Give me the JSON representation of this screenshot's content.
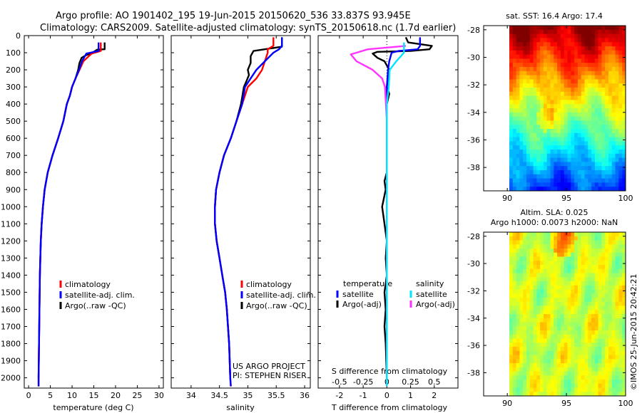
{
  "header": {
    "line1": "Argo profile: AO 1901402_195 19-Jun-2015 20150620_536 33.837S 93.945E",
    "line2": "Climatology: CARS2009. Satellite-adjusted climatology: synTS_20150618.nc (1.7d earlier)"
  },
  "colors": {
    "climatology": "#ff0000",
    "satellite": "#0000ff",
    "argo": "#000000",
    "sal_satellite": "#00e5ff",
    "sal_argo": "#ff33ff"
  },
  "chart_data": [
    {
      "type": "line",
      "panel": "temperature",
      "xlabel": "temperature (deg C)",
      "xlim": [
        -1,
        31
      ],
      "xticks": [
        0,
        5,
        10,
        15,
        20,
        25,
        30
      ],
      "ylim": [
        0,
        2060
      ],
      "yticks": [
        0,
        100,
        200,
        300,
        400,
        500,
        600,
        700,
        800,
        900,
        1000,
        1100,
        1200,
        1300,
        1400,
        1500,
        1600,
        1700,
        1800,
        1900,
        2000
      ],
      "legend": [
        "climatology",
        "satellite-adj. clim.",
        "Argo(..raw -QC)"
      ],
      "legend_position": "bottom-right",
      "series": [
        {
          "name": "climatology",
          "color": "#ff0000",
          "points": [
            [
              16.6,
              40
            ],
            [
              16.6,
              90
            ],
            [
              14.5,
              105
            ],
            [
              12.6,
              150
            ],
            [
              11.7,
              200
            ],
            [
              10.8,
              250
            ],
            [
              10.0,
              300
            ],
            [
              9.5,
              350
            ],
            [
              8.8,
              400
            ],
            [
              8.0,
              500
            ],
            [
              6.8,
              600
            ],
            [
              5.5,
              700
            ],
            [
              4.4,
              800
            ],
            [
              3.7,
              900
            ],
            [
              3.3,
              1000
            ],
            [
              3.0,
              1100
            ],
            [
              2.8,
              1200
            ],
            [
              2.6,
              1400
            ],
            [
              2.5,
              1600
            ],
            [
              2.4,
              1800
            ],
            [
              2.3,
              2000
            ],
            [
              2.3,
              2050
            ]
          ]
        },
        {
          "name": "satellite-adj. clim.",
          "color": "#0000ff",
          "points": [
            [
              16.1,
              40
            ],
            [
              16.1,
              90
            ],
            [
              13.3,
              105
            ],
            [
              12.3,
              150
            ],
            [
              11.6,
              200
            ],
            [
              10.8,
              250
            ],
            [
              10.0,
              300
            ],
            [
              9.5,
              350
            ],
            [
              8.8,
              400
            ],
            [
              8.0,
              500
            ],
            [
              6.8,
              600
            ],
            [
              5.5,
              700
            ],
            [
              4.4,
              800
            ],
            [
              3.7,
              900
            ],
            [
              3.3,
              1000
            ],
            [
              3.0,
              1100
            ],
            [
              2.8,
              1200
            ],
            [
              2.6,
              1400
            ],
            [
              2.5,
              1600
            ],
            [
              2.4,
              1800
            ],
            [
              2.3,
              2000
            ],
            [
              2.3,
              2050
            ]
          ]
        },
        {
          "name": "Argo(..raw -QC)",
          "color": "#000000",
          "points": [
            [
              17.5,
              40
            ],
            [
              17.5,
              80
            ],
            [
              15.8,
              82
            ],
            [
              15.0,
              95
            ],
            [
              14.2,
              105
            ],
            [
              13.2,
              115
            ],
            [
              12.2,
              130
            ],
            [
              11.7,
              160
            ],
            [
              11.4,
              200
            ],
            [
              10.8,
              250
            ],
            [
              10.0,
              300
            ],
            [
              9.5,
              350
            ],
            [
              8.8,
              400
            ],
            [
              8.0,
              500
            ],
            [
              6.8,
              600
            ],
            [
              5.5,
              700
            ],
            [
              4.4,
              800
            ],
            [
              3.7,
              900
            ],
            [
              3.3,
              1000
            ],
            [
              3.0,
              1100
            ],
            [
              2.8,
              1200
            ],
            [
              2.6,
              1400
            ],
            [
              2.5,
              1600
            ],
            [
              2.4,
              1800
            ],
            [
              2.3,
              2000
            ]
          ]
        }
      ]
    },
    {
      "type": "line",
      "panel": "salinity",
      "xlabel": "salinity",
      "xlim": [
        33.65,
        36.1
      ],
      "xticks": [
        34,
        34.5,
        35,
        35.5,
        36
      ],
      "ylim": [
        0,
        2060
      ],
      "legend": [
        "climatology",
        "satellite-adj. clim.",
        "Argo(..raw -QC)"
      ],
      "legend_position": "bottom-right",
      "annotations": [
        "US ARGO PROJECT",
        "PI: STEPHEN RISER"
      ],
      "series": [
        {
          "name": "climatology",
          "color": "#ff0000",
          "points": [
            [
              35.45,
              10
            ],
            [
              35.45,
              60
            ],
            [
              35.35,
              80
            ],
            [
              35.35,
              100
            ],
            [
              35.3,
              150
            ],
            [
              35.25,
              200
            ],
            [
              35.15,
              250
            ],
            [
              35.0,
              300
            ],
            [
              34.9,
              400
            ],
            [
              34.8,
              500
            ],
            [
              34.7,
              600
            ],
            [
              34.58,
              700
            ],
            [
              34.5,
              800
            ],
            [
              34.44,
              900
            ],
            [
              34.42,
              1000
            ],
            [
              34.42,
              1100
            ],
            [
              34.45,
              1200
            ],
            [
              34.5,
              1300
            ],
            [
              34.55,
              1400
            ],
            [
              34.6,
              1500
            ],
            [
              34.63,
              1600
            ],
            [
              34.65,
              1700
            ],
            [
              34.67,
              1800
            ],
            [
              34.69,
              2000
            ],
            [
              34.7,
              2050
            ]
          ]
        },
        {
          "name": "satellite-adj. clim.",
          "color": "#0000ff",
          "points": [
            [
              35.6,
              10
            ],
            [
              35.6,
              60
            ],
            [
              35.55,
              80
            ],
            [
              35.45,
              100
            ],
            [
              35.3,
              150
            ],
            [
              35.15,
              200
            ],
            [
              35.05,
              250
            ],
            [
              34.95,
              300
            ],
            [
              34.9,
              400
            ],
            [
              34.8,
              500
            ],
            [
              34.7,
              600
            ],
            [
              34.58,
              700
            ],
            [
              34.5,
              800
            ],
            [
              34.44,
              900
            ],
            [
              34.42,
              1000
            ],
            [
              34.42,
              1100
            ],
            [
              34.45,
              1200
            ],
            [
              34.5,
              1300
            ],
            [
              34.55,
              1400
            ],
            [
              34.6,
              1500
            ],
            [
              34.63,
              1600
            ],
            [
              34.65,
              1700
            ],
            [
              34.67,
              1800
            ],
            [
              34.69,
              2000
            ],
            [
              34.7,
              2050
            ]
          ]
        },
        {
          "name": "Argo(..raw -QC)",
          "color": "#000000",
          "points": [
            [
              35.6,
              10
            ],
            [
              35.6,
              65
            ],
            [
              35.1,
              90
            ],
            [
              35.05,
              120
            ],
            [
              35.05,
              160
            ],
            [
              35.0,
              200
            ],
            [
              35.02,
              230
            ],
            [
              34.97,
              270
            ],
            [
              34.93,
              300
            ],
            [
              34.88,
              400
            ],
            [
              34.8,
              500
            ],
            [
              34.7,
              600
            ],
            [
              34.58,
              700
            ],
            [
              34.5,
              800
            ],
            [
              34.44,
              900
            ],
            [
              34.42,
              1000
            ],
            [
              34.42,
              1100
            ],
            [
              34.45,
              1200
            ],
            [
              34.5,
              1300
            ],
            [
              34.55,
              1400
            ],
            [
              34.6,
              1500
            ],
            [
              34.63,
              1600
            ],
            [
              34.65,
              1700
            ],
            [
              34.67,
              1800
            ],
            [
              34.69,
              2000
            ]
          ]
        }
      ]
    },
    {
      "type": "line",
      "panel": "differences",
      "xlabel": "T difference from climatology",
      "xlim": [
        -2.9,
        3.0
      ],
      "xticks": [
        -2,
        -1,
        0,
        1,
        2
      ],
      "secondary_xlabel": "S difference from climatology",
      "secondary_xticks": [
        -0.5,
        -0.25,
        0,
        0.25,
        0.5
      ],
      "ylim": [
        0,
        2060
      ],
      "legend_temperature_title": "temperature",
      "legend_salinity_title": "salinity",
      "legend": [
        "satellite",
        "Argo(-adj)",
        "satellite",
        "Argo(-adj)"
      ],
      "legend_position": "bottom",
      "series": [
        {
          "name": "temperature satellite",
          "color": "#0000ff",
          "points": [
            [
              1.4,
              10
            ],
            [
              1.4,
              60
            ],
            [
              1.3,
              80
            ],
            [
              0.5,
              90
            ],
            [
              0.2,
              100
            ],
            [
              0.1,
              150
            ],
            [
              0.05,
              200
            ],
            [
              0,
              300
            ],
            [
              0,
              2000
            ]
          ]
        },
        {
          "name": "temperature Argo(-adj)",
          "color": "#000000",
          "points": [
            [
              0.8,
              10
            ],
            [
              0.9,
              40
            ],
            [
              1.9,
              60
            ],
            [
              1.8,
              80
            ],
            [
              1.0,
              90
            ],
            [
              -0.4,
              95
            ],
            [
              -0.6,
              105
            ],
            [
              -0.4,
              130
            ],
            [
              -0.1,
              150
            ],
            [
              0.1,
              200
            ],
            [
              0,
              300
            ],
            [
              0.1,
              340
            ],
            [
              0,
              400
            ],
            [
              0,
              800
            ],
            [
              -0.1,
              850
            ],
            [
              -0.05,
              900
            ],
            [
              -0.2,
              1000
            ],
            [
              -0.1,
              1100
            ],
            [
              0,
              1200
            ],
            [
              -0.05,
              1300
            ],
            [
              0,
              1400
            ],
            [
              -0.1,
              1500
            ],
            [
              -0.05,
              1600
            ],
            [
              -0.1,
              1700
            ],
            [
              -0.05,
              1800
            ],
            [
              0,
              2000
            ]
          ]
        },
        {
          "name": "salinity satellite",
          "color": "#00e5ff",
          "points": [
            [
              0.18,
              40
            ],
            [
              0.18,
              100
            ],
            [
              0.1,
              150
            ],
            [
              0.03,
              200
            ],
            [
              0.02,
              300
            ],
            [
              0,
              400
            ],
            [
              0,
              2050
            ]
          ]
        },
        {
          "name": "salinity Argo(-adj)",
          "color": "#ff33ff",
          "points": [
            [
              0.2,
              60
            ],
            [
              -0.2,
              80
            ],
            [
              -0.38,
              110
            ],
            [
              -0.32,
              150
            ],
            [
              -0.15,
              200
            ],
            [
              -0.05,
              250
            ],
            [
              -0.02,
              300
            ],
            [
              -0.01,
              400
            ],
            [
              0,
              500
            ],
            [
              0,
              2050
            ]
          ]
        }
      ]
    },
    {
      "type": "heatmap",
      "panel": "sst",
      "title": "sat. SST: 16.4  Argo: 17.4",
      "xlim": [
        88,
        100
      ],
      "ylim": [
        -39.7,
        -27.7
      ],
      "xticks": [
        90,
        95,
        100
      ],
      "yticks": [
        -28,
        -30,
        -32,
        -34,
        -36,
        -38
      ],
      "marker": {
        "lon": 93.945,
        "lat": -33.837
      }
    },
    {
      "type": "heatmap",
      "panel": "sla",
      "title_line1": "Altim. SLA: 0.025",
      "title_line2": "Argo h1000: 0.0073 h2000: NaN",
      "xlim": [
        88,
        100
      ],
      "ylim": [
        -39.7,
        -27.7
      ],
      "xticks": [
        90,
        95,
        100
      ],
      "yticks": [
        -28,
        -30,
        -32,
        -34,
        -36,
        -38
      ]
    }
  ],
  "stamp": "©IMOS 25-Jun-2015 20:42:21"
}
